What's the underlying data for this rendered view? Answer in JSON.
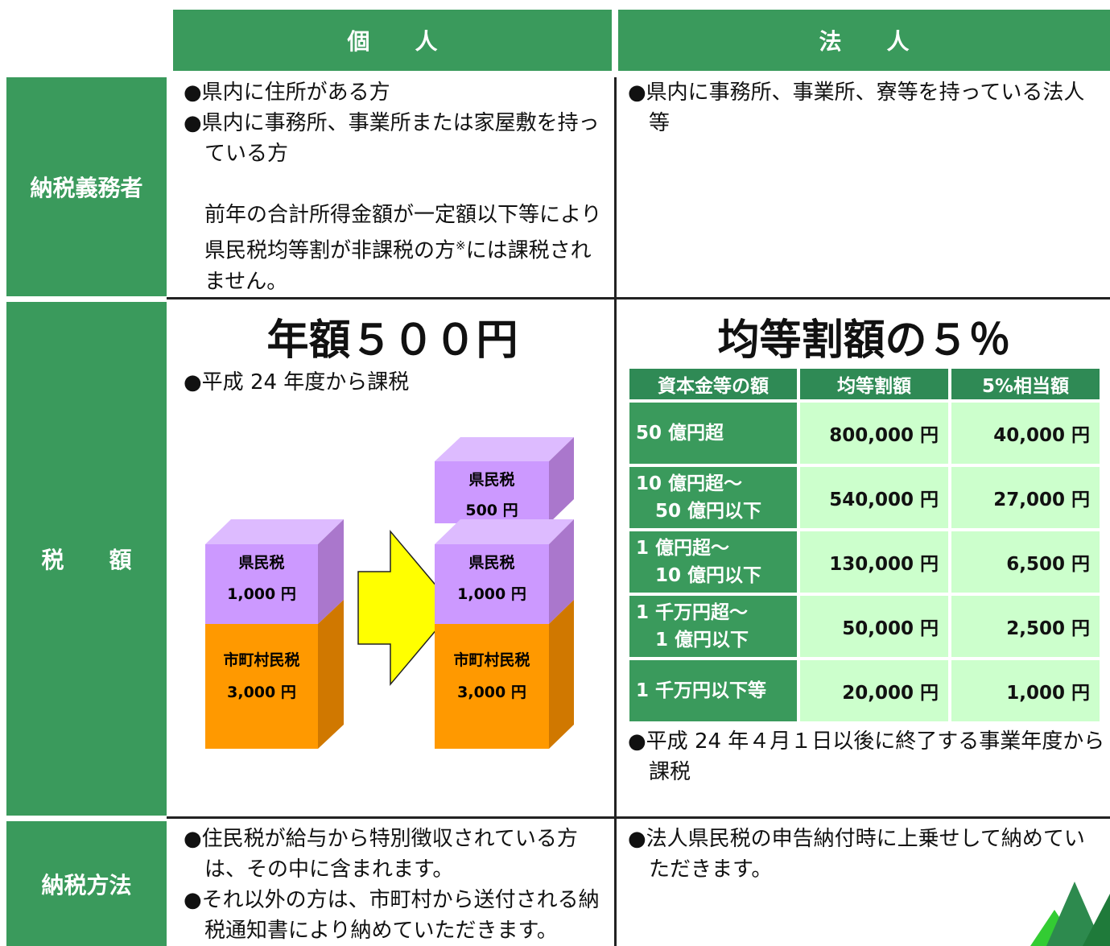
{
  "columns": {
    "individual": "個　　人",
    "corporate": "法　　人"
  },
  "sections": {
    "taxpayer": {
      "label": "納税義務者",
      "individual": {
        "items": [
          "●県内に住所がある方",
          "●県内に事務所、事業所または家屋敷を持っている方"
        ],
        "note_before": "前年の合計所得金額が一定額以下等により県民税均等割が非課税の方",
        "note_mark": "※",
        "note_after": "には課税されません。"
      },
      "corporate": {
        "items": [
          "●県内に事務所、事業所、寮等を持っている法人等"
        ]
      }
    },
    "amount": {
      "label": "税　　額",
      "individual": {
        "heading": "年額５００円",
        "note": "●平成 24 年度から課税",
        "diagram": {
          "before": {
            "upper_name": "県民税",
            "upper_amount": "1,000 円",
            "lower_name": "市町村民税",
            "lower_amount": "3,000 円"
          },
          "after": {
            "added_name": "県民税",
            "added_amount": "500 円",
            "upper_name": "県民税",
            "upper_amount": "1,000 円",
            "lower_name": "市町村民税",
            "lower_amount": "3,000 円"
          }
        }
      },
      "corporate": {
        "heading": "均等割額の５％",
        "table": {
          "header": [
            "資本金等の額",
            "均等割額",
            "5%相当額"
          ],
          "rows": [
            [
              [
                "50 億円超"
              ],
              "800,000 円",
              "40,000 円"
            ],
            [
              [
                "10 億円超～",
                "50 億円以下"
              ],
              "540,000 円",
              "27,000 円"
            ],
            [
              [
                "1 億円超～",
                "10 億円以下"
              ],
              "130,000 円",
              "6,500 円"
            ],
            [
              [
                "1 千万円超～",
                "1 億円以下"
              ],
              "50,000 円",
              "2,500 円"
            ],
            [
              [
                "1 千万円以下等"
              ],
              "20,000 円",
              "1,000 円"
            ]
          ]
        },
        "note": "●平成 24 年４月１日以後に終了する事業年度から課税"
      }
    },
    "payment": {
      "label": "納税方法",
      "individual": {
        "items": [
          "●住民税が給与から特別徴収されている方は、その中に含まれます。",
          "●それ以外の方は、市町村から送付される納税通知書により納めていただきます。"
        ]
      },
      "corporate": {
        "items": [
          "●法人県民税の申告納付時に上乗せして納めていただきます。"
        ]
      }
    }
  }
}
